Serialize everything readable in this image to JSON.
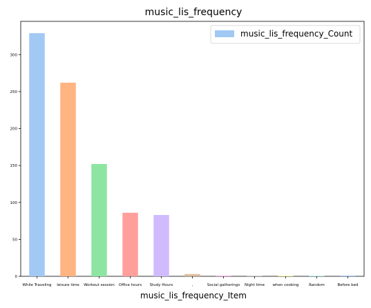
{
  "chart_data": {
    "type": "bar",
    "title": "music_lis_frequency",
    "xlabel": "music_lis_frequency_Item",
    "ylabel": "",
    "categories": [
      "While Traveling",
      "leisure time",
      "Workout session",
      "Office hours",
      "Study Hours",
      ",",
      "Social gatherings",
      "Night time",
      "when cooking",
      "Random",
      "Before bed"
    ],
    "series": [
      {
        "name": "music_lis_frequency_Count",
        "values": [
          329,
          262,
          152,
          86,
          83,
          3,
          1,
          1,
          1,
          1,
          1
        ]
      }
    ],
    "bar_colors": [
      "#a1c9f4",
      "#ffb482",
      "#8de5a1",
      "#ff9f9b",
      "#d0bbff",
      "#debb9b",
      "#fab0e4",
      "#cfcfcf",
      "#fffea3",
      "#b9f2f0",
      "#a1c9f4"
    ],
    "legend_swatch_color": "#a1c9f4",
    "ylim": [
      0,
      345
    ],
    "yticks": [
      0,
      50,
      100,
      150,
      200,
      250,
      300
    ],
    "grid": false,
    "legend_position": "top-right"
  }
}
